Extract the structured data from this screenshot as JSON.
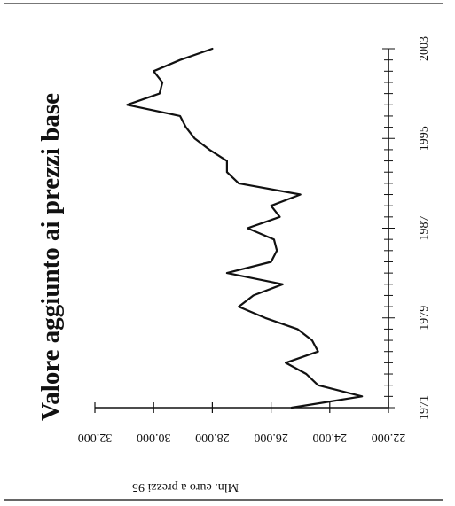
{
  "chart_data": {
    "type": "line",
    "title": "Valore aggiunto ai prezzi base",
    "ylabel": "Mln. euro a prezzi 95",
    "xlabel": "",
    "x_ticks": [
      "1971",
      "1979",
      "1987",
      "1995",
      "2003"
    ],
    "y_ticks": [
      "22.000",
      "24.000",
      "26.000",
      "28.000",
      "30.000",
      "32.000"
    ],
    "xlim": [
      1971,
      2003
    ],
    "ylim": [
      22000,
      32000
    ],
    "grid": false,
    "series": [
      {
        "x": [
          1971,
          1972,
          1973,
          1974,
          1975,
          1976,
          1977,
          1978,
          1979,
          1980,
          1981,
          1982,
          1983,
          1984,
          1985,
          1986,
          1987,
          1988,
          1989,
          1990,
          1991,
          1992,
          1993,
          1994,
          1995,
          1996,
          1997,
          1998,
          1999,
          2000,
          2001,
          2002,
          2003
        ],
        "y": [
          25300,
          22900,
          24400,
          24800,
          25500,
          24400,
          24600,
          25100,
          26200,
          27100,
          26600,
          25600,
          27500,
          26000,
          25800,
          25900,
          26800,
          25700,
          26000,
          25000,
          27100,
          27500,
          27500,
          28100,
          28600,
          28900,
          29100,
          30900,
          29800,
          29700,
          30000,
          29100,
          28000
        ]
      }
    ]
  }
}
